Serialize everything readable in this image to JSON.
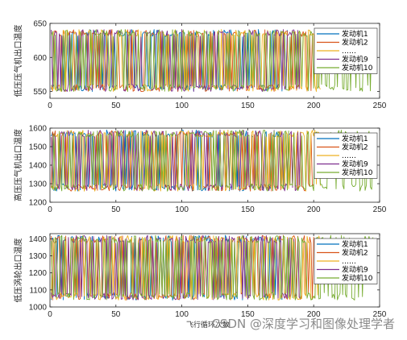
{
  "chart_data": [
    {
      "type": "line",
      "ylabel": "低压压气机出口温度",
      "xlim": [
        0,
        250
      ],
      "ylim": [
        540,
        650
      ],
      "xticks": [
        "0",
        "50",
        "100",
        "150",
        "200",
        "250"
      ],
      "yticks": [
        "550",
        "600",
        "650"
      ],
      "legend": [
        "发动机1",
        "发动机2",
        "……",
        "发动机9",
        "发动机10"
      ],
      "legend_position": "right",
      "band": [
        550,
        641
      ],
      "series": [
        {
          "name": "发动机1",
          "color": "#0072BD",
          "length": 180
        },
        {
          "name": "发动机2",
          "color": "#D95319",
          "length": 200
        },
        {
          "name": "……",
          "color": "#EDB120",
          "length": 205
        },
        {
          "name": "发动机9",
          "color": "#7E2F8E",
          "length": 190
        },
        {
          "name": "发动机10",
          "color": "#77AC30",
          "length": 245
        }
      ]
    },
    {
      "type": "line",
      "ylabel": "高压压气机出口温度",
      "xlim": [
        0,
        250
      ],
      "ylim": [
        1200,
        1600
      ],
      "xticks": [
        "0",
        "50",
        "100",
        "150",
        "200",
        "250"
      ],
      "yticks": [
        "1200",
        "1300",
        "1400",
        "1500",
        "1600"
      ],
      "legend": [
        "发动机1",
        "发动机2",
        "……",
        "发动机9",
        "发动机10"
      ],
      "legend_position": "right",
      "band": [
        1260,
        1590
      ],
      "series": [
        {
          "name": "发动机1",
          "color": "#0072BD",
          "length": 180
        },
        {
          "name": "发动机2",
          "color": "#D95319",
          "length": 200
        },
        {
          "name": "……",
          "color": "#EDB120",
          "length": 205
        },
        {
          "name": "发动机9",
          "color": "#7E2F8E",
          "length": 190
        },
        {
          "name": "发动机10",
          "color": "#77AC30",
          "length": 245
        }
      ]
    },
    {
      "type": "line",
      "ylabel": "低压涡轮出口温度",
      "xlim": [
        0,
        250
      ],
      "ylim": [
        1000,
        1430
      ],
      "xticks": [
        "0",
        "50",
        "100",
        "150",
        "200",
        "250"
      ],
      "yticks": [
        "1000",
        "1100",
        "1200",
        "1300",
        "1400"
      ],
      "legend": [
        "发动机1",
        "发动机2",
        "……",
        "发动机9",
        "发动机10"
      ],
      "legend_position": "right",
      "band": [
        1040,
        1420
      ],
      "series": [
        {
          "name": "发动机1",
          "color": "#0072BD",
          "length": 180
        },
        {
          "name": "发动机2",
          "color": "#D95319",
          "length": 200
        },
        {
          "name": "……",
          "color": "#EDB120",
          "length": 205
        },
        {
          "name": "发动机9",
          "color": "#7E2F8E",
          "length": 190
        },
        {
          "name": "发动机10",
          "color": "#77AC30",
          "length": 245
        }
      ]
    }
  ],
  "xlabel": "飞行循环次数",
  "watermark": "CSDN @深度学习和图像处理学者"
}
